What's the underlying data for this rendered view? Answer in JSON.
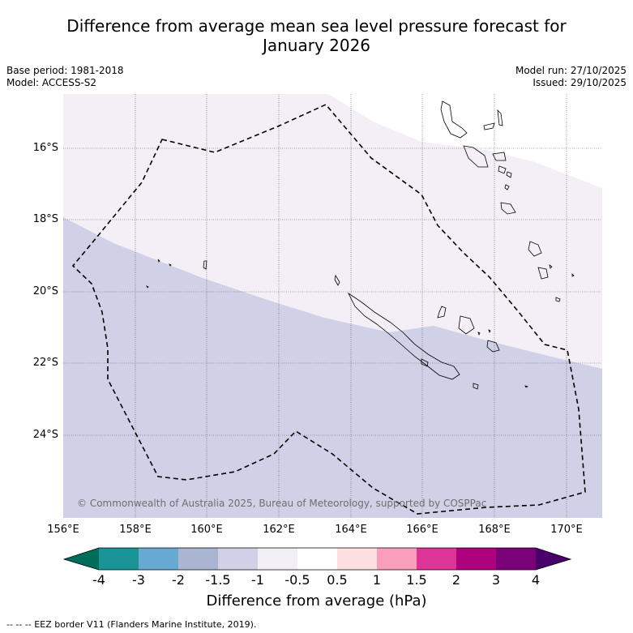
{
  "title_line1": "Difference from average mean sea level pressure forecast for",
  "title_line2": "January 2026",
  "base_period": "Base period: 1981-2018",
  "model": "Model: ACCESS-S2",
  "model_run": "Model run: 27/10/2025",
  "issued": "Issued: 29/10/2025",
  "copyright": "© Commonwealth of Australia 2025, Bureau of Meteorology, supported by COSPPac",
  "lat_labels": [
    "16°S",
    "18°S",
    "20°S",
    "22°S",
    "24°S"
  ],
  "lon_labels": [
    "156°E",
    "158°E",
    "160°E",
    "162°E",
    "164°E",
    "166°E",
    "168°E",
    "170°E"
  ],
  "colorbar": {
    "ticks": [
      "-4",
      "-3",
      "-2",
      "-1.5",
      "-1",
      "-0.5",
      "0.5",
      "1",
      "1.5",
      "2",
      "3",
      "4"
    ],
    "colors": [
      "#006d5b",
      "#1a9396",
      "#66a9d1",
      "#a9b5d1",
      "#d0d1e6",
      "#f1eef6",
      "#ffffff",
      "#fddfdf",
      "#f99fbc",
      "#dd3497",
      "#ae017e",
      "#7a0177",
      "#49006a"
    ],
    "label": "Difference from average (hPa)"
  },
  "map_colors": {
    "light_pink": "#f4eef6",
    "lavender": "#d0d1e6"
  },
  "footnote": "--  --  -- EEZ border V11 (Flanders Marine Institute, 2019)."
}
